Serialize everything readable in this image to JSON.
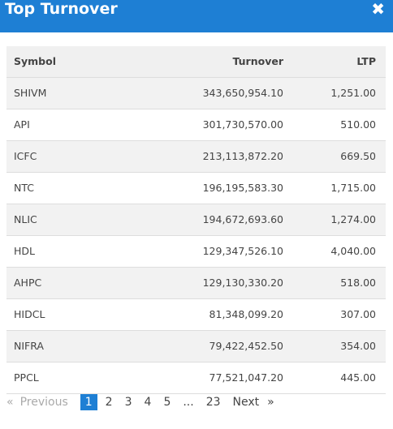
{
  "header": {
    "title": "Top Turnover",
    "close_glyph": "✖"
  },
  "table": {
    "columns": {
      "symbol": "Symbol",
      "turnover": "Turnover",
      "ltp": "LTP"
    },
    "rows": [
      {
        "symbol": "SHIVM",
        "turnover": "343,650,954.10",
        "ltp": "1,251.00"
      },
      {
        "symbol": "API",
        "turnover": "301,730,570.00",
        "ltp": "510.00"
      },
      {
        "symbol": "ICFC",
        "turnover": "213,113,872.20",
        "ltp": "669.50"
      },
      {
        "symbol": "NTC",
        "turnover": "196,195,583.30",
        "ltp": "1,715.00"
      },
      {
        "symbol": "NLIC",
        "turnover": "194,672,693.60",
        "ltp": "1,274.00"
      },
      {
        "symbol": "HDL",
        "turnover": "129,347,526.10",
        "ltp": "4,040.00"
      },
      {
        "symbol": "AHPC",
        "turnover": "129,130,330.20",
        "ltp": "518.00"
      },
      {
        "symbol": "HIDCL",
        "turnover": "81,348,099.20",
        "ltp": "307.00"
      },
      {
        "symbol": "NIFRA",
        "turnover": "79,422,452.50",
        "ltp": "354.00"
      },
      {
        "symbol": "PPCL",
        "turnover": "77,521,047.20",
        "ltp": "445.00"
      }
    ]
  },
  "pagination": {
    "prev_arrow": "«",
    "previous": "Previous",
    "pages": [
      "1",
      "2",
      "3",
      "4",
      "5"
    ],
    "ellipsis": "...",
    "last": "23",
    "next": "Next",
    "next_arrow": "»",
    "active_page": "1"
  },
  "colors": {
    "accent": "#1e7fd4"
  }
}
